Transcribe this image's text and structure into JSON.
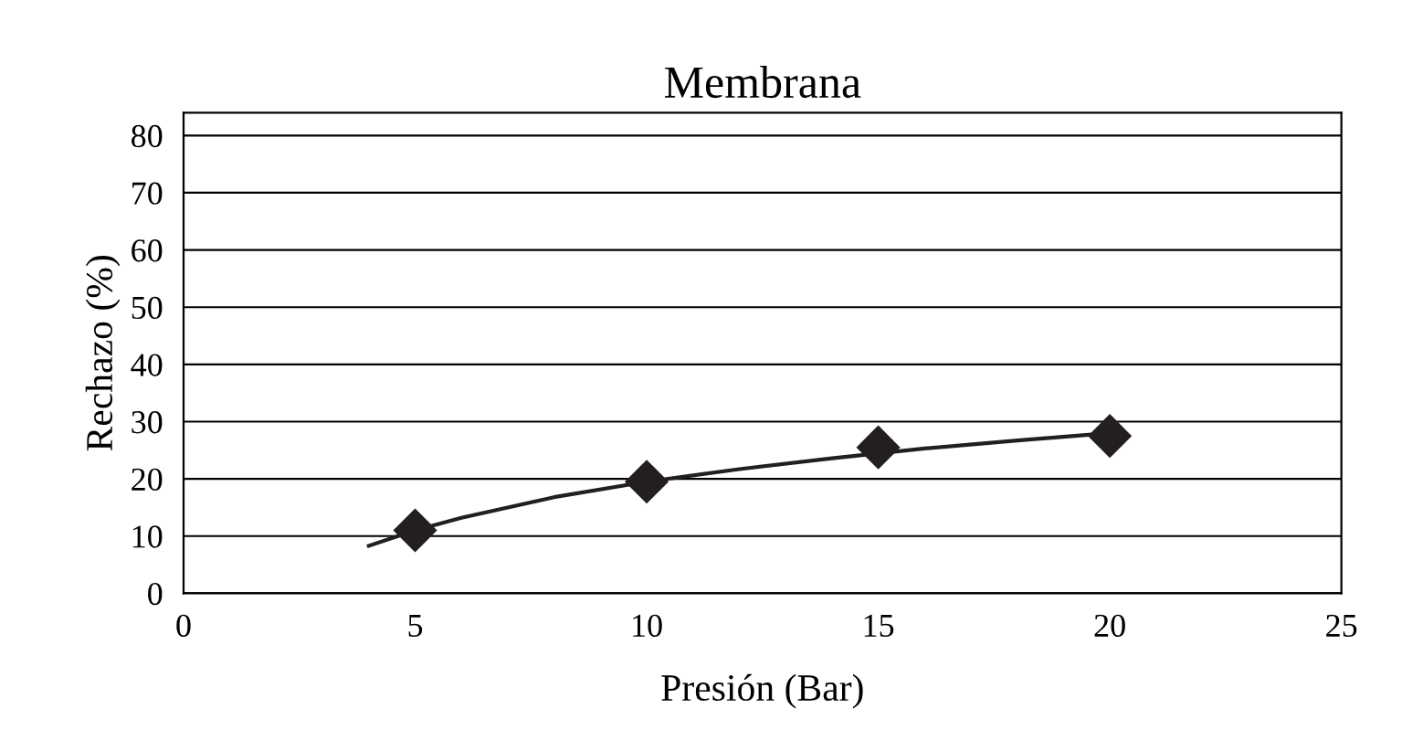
{
  "chart_data": {
    "type": "scatter",
    "title": "Membrana",
    "xlabel": "Presión (Bar)",
    "ylabel": "Rechazo (%)",
    "series": [
      {
        "type": "scatter",
        "color": "#231f20",
        "marker": "diamond",
        "x": [
          5,
          10,
          15,
          20
        ],
        "values": [
          11,
          19.5,
          25.5,
          27.5
        ]
      },
      {
        "type": "line",
        "color": "#231f20",
        "marker": "none",
        "line_style": "solid",
        "x": [
          4,
          5,
          6,
          8,
          10,
          12,
          14,
          16,
          18,
          20
        ],
        "values": [
          8.3,
          11.0,
          13.2,
          16.8,
          19.5,
          21.7,
          23.6,
          25.3,
          26.7,
          28.0
        ]
      }
    ],
    "xlim": [
      0,
      25
    ],
    "xticks": [
      0,
      5,
      10,
      15,
      20,
      25
    ],
    "ylim": [
      0,
      84
    ],
    "yticks": [
      0,
      10,
      20,
      30,
      40,
      50,
      60,
      70,
      80
    ],
    "grid": "y",
    "legend": false
  }
}
